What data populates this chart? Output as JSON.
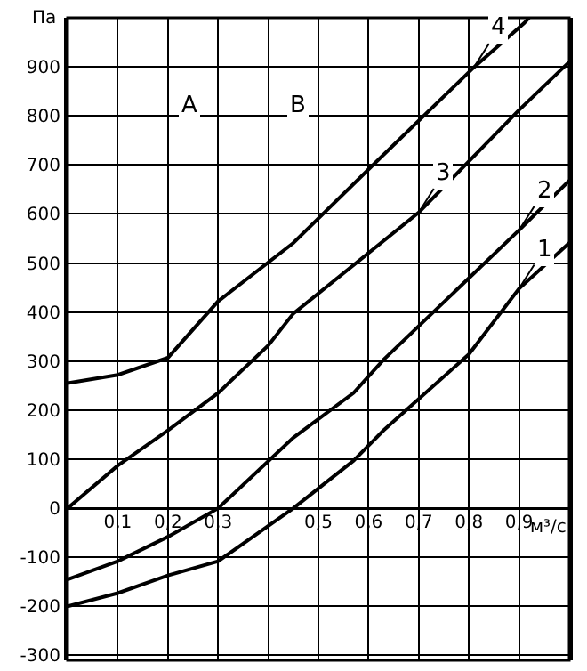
{
  "chart_data": {
    "type": "line",
    "ylabel": "Па",
    "xlabel": "м³/с",
    "xlim": [
      0,
      1.0
    ],
    "ylim": [
      -310,
      1000
    ],
    "xticks": [
      {
        "value": 0.1,
        "label": "0,1"
      },
      {
        "value": 0.2,
        "label": "0,2"
      },
      {
        "value": 0.3,
        "label": "0,3"
      },
      {
        "value": 0.4,
        "label": null
      },
      {
        "value": 0.5,
        "label": "0,5"
      },
      {
        "value": 0.6,
        "label": "0,6"
      },
      {
        "value": 0.7,
        "label": "0,7"
      },
      {
        "value": 0.8,
        "label": "0,8"
      },
      {
        "value": 0.9,
        "label": "0,9"
      }
    ],
    "yticks": [
      -300,
      -200,
      -100,
      0,
      100,
      200,
      300,
      400,
      500,
      600,
      700,
      800,
      900
    ],
    "grid": true,
    "marker": "none",
    "line_style": "solid",
    "series": [
      {
        "color": "#000000",
        "x": [
          0,
          0.1,
          0.2,
          0.3,
          0.45,
          0.57,
          0.63,
          0.8,
          0.9,
          1.0
        ],
        "values": [
          -200,
          -173,
          -137,
          -108,
          0,
          97,
          159,
          314,
          448,
          541
        ]
      },
      {
        "color": "#000000",
        "x": [
          0,
          0.1,
          0.2,
          0.3,
          0.45,
          0.57,
          0.63,
          0.9,
          1.0
        ],
        "values": [
          -145,
          -108,
          -58,
          0,
          144,
          235,
          303,
          567,
          668
        ]
      },
      {
        "color": "#000000",
        "x": [
          0,
          0.1,
          0.2,
          0.3,
          0.4,
          0.45,
          0.7,
          0.9,
          1.0
        ],
        "values": [
          0,
          87,
          159,
          235,
          332,
          397,
          603,
          812,
          910
        ]
      },
      {
        "color": "#000000",
        "x": [
          0,
          0.1,
          0.2,
          0.3,
          0.45,
          0.62,
          0.81,
          0.91,
          0.92
        ],
        "values": [
          255,
          272,
          307,
          422,
          541,
          711,
          899,
          989,
          1000
        ]
      }
    ],
    "annotations": [
      {
        "text": "1",
        "x": 0.9,
        "y": 448
      },
      {
        "text": "2",
        "x": 0.9,
        "y": 567
      },
      {
        "text": "3",
        "x": 0.7,
        "y": 603
      },
      {
        "text": "4",
        "x": 0.81,
        "y": 899
      },
      "A",
      "В"
    ]
  }
}
